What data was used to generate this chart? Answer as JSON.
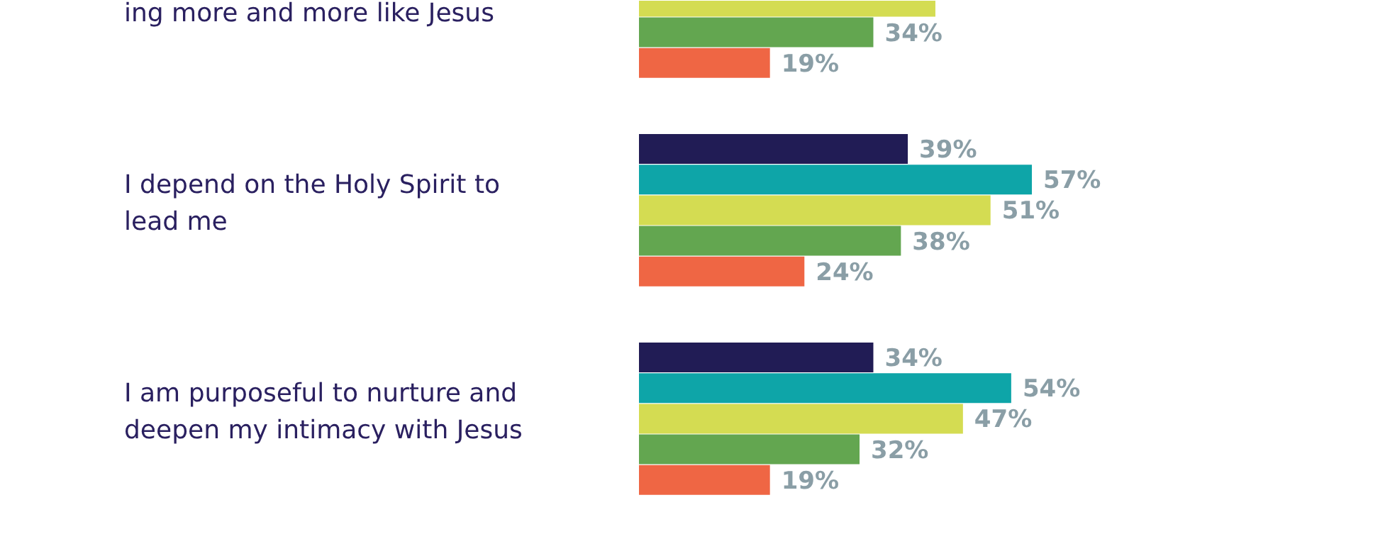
{
  "chart_data": {
    "type": "bar",
    "orientation": "horizontal",
    "categories": [
      "ing more and more like Jesus",
      "I depend on the Holy Spirit to lead me",
      "I am purposeful to nurture and deepen my intimacy with Jesus"
    ],
    "series": [
      {
        "color": "#211c55",
        "values": [
          null,
          39,
          34
        ],
        "value_labels": [
          null,
          "39%",
          "34%"
        ]
      },
      {
        "color": "#0ea5a8",
        "values": [
          null,
          57,
          54
        ],
        "value_labels": [
          null,
          "57%",
          "54%"
        ]
      },
      {
        "color": "#d4dc52",
        "values": [
          43,
          51,
          47
        ],
        "value_labels": [
          null,
          "51%",
          "47%"
        ]
      },
      {
        "color": "#63a650",
        "values": [
          34,
          38,
          32
        ],
        "value_labels": [
          "34%",
          "38%",
          "32%"
        ]
      },
      {
        "color": "#ef6644",
        "values": [
          19,
          24,
          19
        ],
        "value_labels": [
          "19%",
          "24%",
          "19%"
        ]
      }
    ],
    "grid": false
  }
}
